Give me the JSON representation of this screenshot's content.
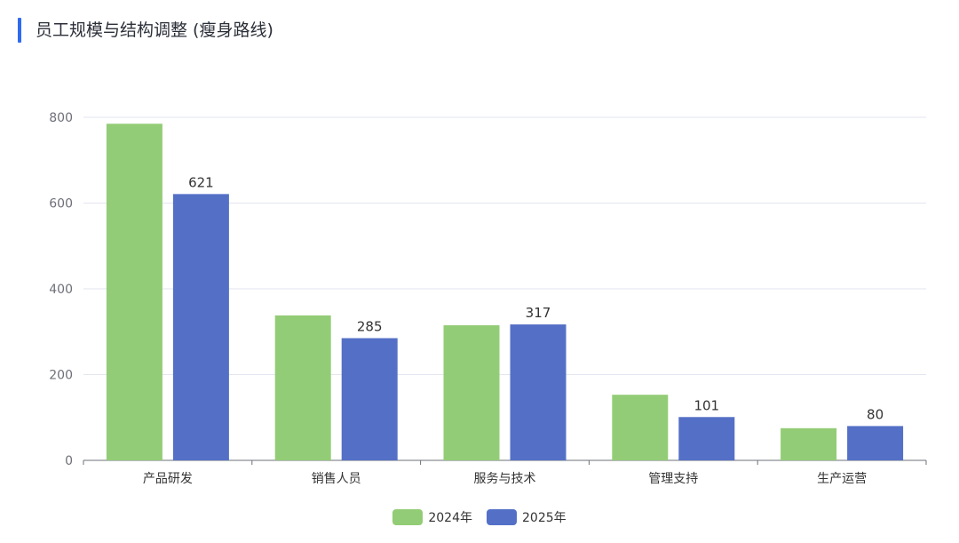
{
  "title": "员工规模与结构调整 (瘦身路线)",
  "colors": {
    "accent": "#2f6bf0",
    "series_2024": "#93cc76",
    "series_2025": "#5470c6"
  },
  "chart_data": {
    "type": "bar",
    "title": "员工规模与结构调整 (瘦身路线)",
    "categories": [
      "产品研发",
      "销售人员",
      "服务与技术",
      "管理支持",
      "生产运营"
    ],
    "series": [
      {
        "name": "2024年",
        "values": [
          785,
          338,
          315,
          153,
          75
        ],
        "color": "#93cc76"
      },
      {
        "name": "2025年",
        "values": [
          621,
          285,
          317,
          101,
          80
        ],
        "color": "#5470c6",
        "labels": [
          "621",
          "285",
          "317",
          "101",
          "80"
        ]
      }
    ],
    "ylim": [
      0,
      800
    ],
    "yticks": [
      "0",
      "200",
      "400",
      "600",
      "800"
    ],
    "grid": true,
    "legend": "bottom-center"
  }
}
